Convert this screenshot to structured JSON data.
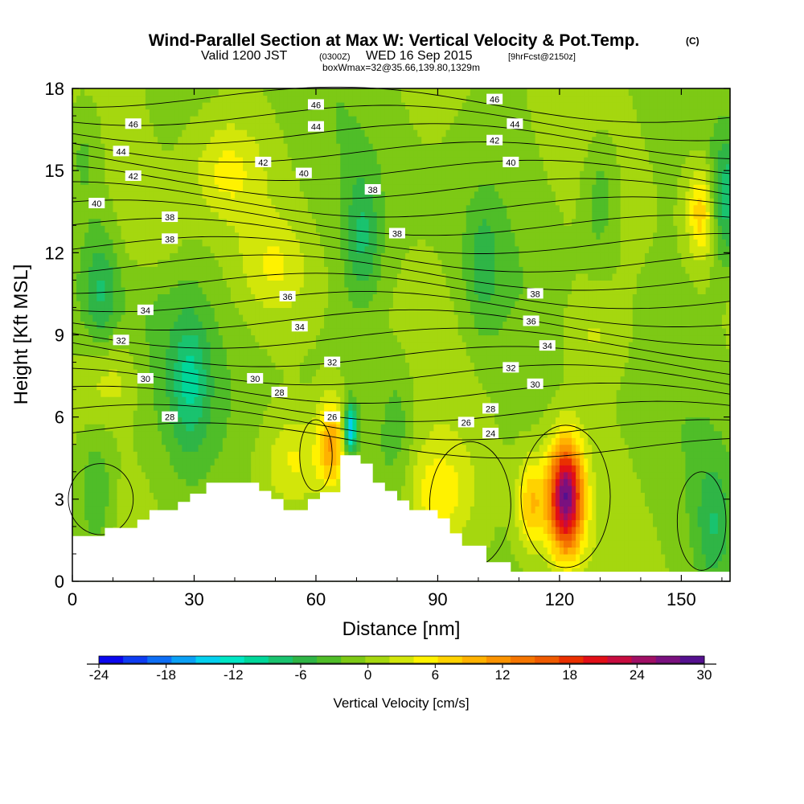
{
  "title": {
    "main": "Wind-Parallel Section at Max W: Vertical Velocity & Pot.Temp.",
    "main_unit": "(C)",
    "valid_a": "Valid 1200 JST",
    "valid_z": "(0300Z)",
    "valid_b": "WED 16 Sep 2015",
    "fcst": "[9hrFcst@2150z]",
    "box": "boxWmax=32@35.66,139.80,1329m"
  },
  "chart_data": {
    "type": "heatmap",
    "xlabel": "Distance [nm]",
    "ylabel": "Height [Kft MSL]",
    "xlim": [
      0,
      162
    ],
    "ylim": [
      0,
      18
    ],
    "x_ticks": [
      "0",
      "30",
      "60",
      "90",
      "120",
      "150"
    ],
    "y_ticks": [
      "0",
      "3",
      "6",
      "9",
      "12",
      "15",
      "18"
    ],
    "colorbar": {
      "label": "Vertical Velocity [cm/s]",
      "tick_labels": [
        "-24",
        "-18",
        "-12",
        "-6",
        "0",
        "6",
        "12",
        "18",
        "24",
        "30"
      ],
      "min": -24,
      "max": 30,
      "step": 2.5,
      "colors": [
        "#0b07ee",
        "#0e3cf2",
        "#0d6ef5",
        "#0ba0f5",
        "#04d0ef",
        "#00e6c4",
        "#00d79a",
        "#19c36f",
        "#2fb546",
        "#4fbd28",
        "#7dc915",
        "#a5d70f",
        "#d2e60a",
        "#fff200",
        "#ffd200",
        "#ffb200",
        "#fb9300",
        "#f57500",
        "#ef5a00",
        "#ea3000",
        "#e20f17",
        "#c70c3f",
        "#a00f65",
        "#7a117f",
        "#55118f"
      ]
    },
    "terrain": [
      [
        0,
        1.65
      ],
      [
        8,
        1.65
      ],
      [
        8,
        1.95
      ],
      [
        16,
        1.95
      ],
      [
        16,
        2.25
      ],
      [
        19,
        2.25
      ],
      [
        19,
        2.6
      ],
      [
        26,
        2.6
      ],
      [
        26,
        2.9
      ],
      [
        29,
        2.9
      ],
      [
        29,
        3.2
      ],
      [
        33,
        3.2
      ],
      [
        33,
        3.6
      ],
      [
        46,
        3.6
      ],
      [
        46,
        3.3
      ],
      [
        49,
        3.3
      ],
      [
        49,
        3.0
      ],
      [
        52,
        3.0
      ],
      [
        52,
        2.6
      ],
      [
        58,
        2.6
      ],
      [
        58,
        3.0
      ],
      [
        61,
        3.0
      ],
      [
        61,
        3.25
      ],
      [
        66,
        3.25
      ],
      [
        66,
        4.6
      ],
      [
        71,
        4.6
      ],
      [
        71,
        4.3
      ],
      [
        74,
        4.3
      ],
      [
        74,
        3.6
      ],
      [
        77,
        3.6
      ],
      [
        77,
        3.3
      ],
      [
        80,
        3.3
      ],
      [
        80,
        2.95
      ],
      [
        83,
        2.95
      ],
      [
        83,
        2.6
      ],
      [
        90,
        2.6
      ],
      [
        90,
        2.3
      ],
      [
        93,
        2.3
      ],
      [
        93,
        1.75
      ],
      [
        96,
        1.75
      ],
      [
        96,
        1.3
      ],
      [
        102,
        1.3
      ],
      [
        102,
        0.7
      ],
      [
        108,
        0.7
      ],
      [
        108,
        0.35
      ],
      [
        162,
        0.35
      ]
    ],
    "updrafts": [
      {
        "x": 121.5,
        "y": 3.1,
        "w": 32
      },
      {
        "x": 113,
        "y": 2.8,
        "w": 10
      },
      {
        "x": 64,
        "y": 5.0,
        "w": 13
      },
      {
        "x": 55,
        "y": 4.4,
        "w": 6
      },
      {
        "x": 90,
        "y": 3.2,
        "w": 6
      },
      {
        "x": 155,
        "y": 13.5,
        "w": 10
      },
      {
        "x": 38,
        "y": 15.0,
        "w": 5
      },
      {
        "x": 9,
        "y": 7.5,
        "w": 5
      },
      {
        "x": 50,
        "y": 11.5,
        "w": 4
      },
      {
        "x": 128,
        "y": 9.0,
        "w": 3
      },
      {
        "x": 20,
        "y": 12.8,
        "w": 3
      }
    ],
    "downdrafts": [
      {
        "x": 68.5,
        "y": 5.6,
        "w": -18
      },
      {
        "x": 161,
        "y": 14.0,
        "w": -10
      },
      {
        "x": 7,
        "y": 10.6,
        "w": -7
      },
      {
        "x": 29,
        "y": 7.2,
        "w": -7
      },
      {
        "x": 71.5,
        "y": 12.5,
        "w": -7
      },
      {
        "x": 101,
        "y": 11.5,
        "w": -5
      },
      {
        "x": 130,
        "y": 14.0,
        "w": -5
      },
      {
        "x": 6,
        "y": 3.2,
        "w": -6
      },
      {
        "x": 158,
        "y": 2.0,
        "w": -6
      },
      {
        "x": 80,
        "y": 5.8,
        "w": -4
      },
      {
        "x": 3,
        "y": 15.8,
        "w": -4
      }
    ],
    "isentrope_labels": [
      {
        "text": "46",
        "x": 15,
        "y": 16.7
      },
      {
        "text": "46",
        "x": 60,
        "y": 17.4
      },
      {
        "text": "46",
        "x": 104,
        "y": 17.6
      },
      {
        "text": "44",
        "x": 12,
        "y": 15.7
      },
      {
        "text": "44",
        "x": 60,
        "y": 16.6
      },
      {
        "text": "44",
        "x": 109,
        "y": 16.7
      },
      {
        "text": "42",
        "x": 15,
        "y": 14.8
      },
      {
        "text": "42",
        "x": 47,
        "y": 15.3
      },
      {
        "text": "42",
        "x": 104,
        "y": 16.1
      },
      {
        "text": "40",
        "x": 6,
        "y": 13.8
      },
      {
        "text": "40",
        "x": 57,
        "y": 14.9
      },
      {
        "text": "40",
        "x": 108,
        "y": 15.3
      },
      {
        "text": "38",
        "x": 24,
        "y": 13.3
      },
      {
        "text": "38",
        "x": 74,
        "y": 14.3
      },
      {
        "text": "38",
        "x": 80,
        "y": 12.7
      },
      {
        "text": "38",
        "x": 24,
        "y": 12.5
      },
      {
        "text": "38",
        "x": 114,
        "y": 10.5
      },
      {
        "text": "36",
        "x": 53,
        "y": 10.4
      },
      {
        "text": "36",
        "x": 113,
        "y": 9.5
      },
      {
        "text": "34",
        "x": 18,
        "y": 9.9
      },
      {
        "text": "34",
        "x": 56,
        "y": 9.3
      },
      {
        "text": "34",
        "x": 117,
        "y": 8.6
      },
      {
        "text": "32",
        "x": 12,
        "y": 8.8
      },
      {
        "text": "32",
        "x": 64,
        "y": 8.0
      },
      {
        "text": "32",
        "x": 108,
        "y": 7.8
      },
      {
        "text": "30",
        "x": 18,
        "y": 7.4
      },
      {
        "text": "30",
        "x": 45,
        "y": 7.4
      },
      {
        "text": "30",
        "x": 114,
        "y": 7.2
      },
      {
        "text": "28",
        "x": 24,
        "y": 6.0
      },
      {
        "text": "28",
        "x": 51,
        "y": 6.9
      },
      {
        "text": "28",
        "x": 103,
        "y": 6.3
      },
      {
        "text": "26",
        "x": 64,
        "y": 6.0
      },
      {
        "text": "26",
        "x": 97,
        "y": 5.8
      },
      {
        "text": "24",
        "x": 103,
        "y": 5.4
      }
    ]
  }
}
